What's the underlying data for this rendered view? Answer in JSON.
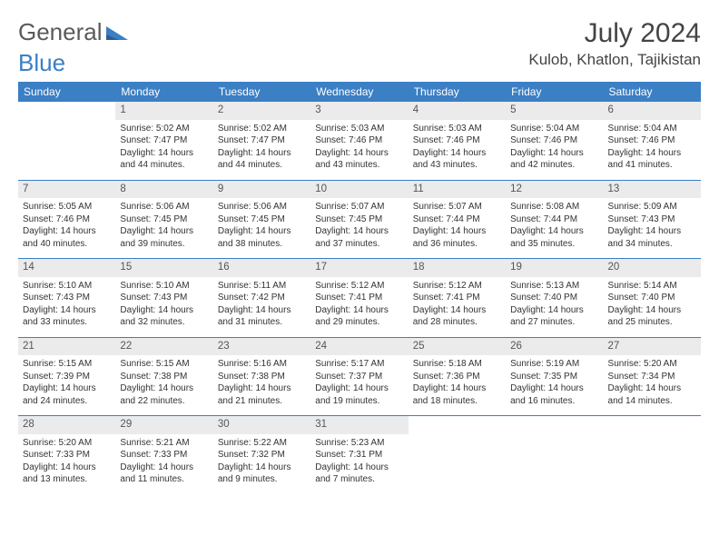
{
  "logo": {
    "text_general": "General",
    "text_blue": "Blue"
  },
  "title": "July 2024",
  "location": "Kulob, Khatlon, Tajikistan",
  "day_headers": [
    "Sunday",
    "Monday",
    "Tuesday",
    "Wednesday",
    "Thursday",
    "Friday",
    "Saturday"
  ],
  "colors": {
    "accent": "#3b7fc4",
    "header_text": "#ffffff",
    "daynum_bg": "#ebebeb",
    "text": "#333333",
    "title_color": "#444444"
  },
  "weeks": [
    [
      {
        "day": "",
        "lines": [
          "",
          "",
          ""
        ]
      },
      {
        "day": "1",
        "lines": [
          "Sunrise: 5:02 AM",
          "Sunset: 7:47 PM",
          "Daylight: 14 hours and 44 minutes."
        ]
      },
      {
        "day": "2",
        "lines": [
          "Sunrise: 5:02 AM",
          "Sunset: 7:47 PM",
          "Daylight: 14 hours and 44 minutes."
        ]
      },
      {
        "day": "3",
        "lines": [
          "Sunrise: 5:03 AM",
          "Sunset: 7:46 PM",
          "Daylight: 14 hours and 43 minutes."
        ]
      },
      {
        "day": "4",
        "lines": [
          "Sunrise: 5:03 AM",
          "Sunset: 7:46 PM",
          "Daylight: 14 hours and 43 minutes."
        ]
      },
      {
        "day": "5",
        "lines": [
          "Sunrise: 5:04 AM",
          "Sunset: 7:46 PM",
          "Daylight: 14 hours and 42 minutes."
        ]
      },
      {
        "day": "6",
        "lines": [
          "Sunrise: 5:04 AM",
          "Sunset: 7:46 PM",
          "Daylight: 14 hours and 41 minutes."
        ]
      }
    ],
    [
      {
        "day": "7",
        "lines": [
          "Sunrise: 5:05 AM",
          "Sunset: 7:46 PM",
          "Daylight: 14 hours and 40 minutes."
        ]
      },
      {
        "day": "8",
        "lines": [
          "Sunrise: 5:06 AM",
          "Sunset: 7:45 PM",
          "Daylight: 14 hours and 39 minutes."
        ]
      },
      {
        "day": "9",
        "lines": [
          "Sunrise: 5:06 AM",
          "Sunset: 7:45 PM",
          "Daylight: 14 hours and 38 minutes."
        ]
      },
      {
        "day": "10",
        "lines": [
          "Sunrise: 5:07 AM",
          "Sunset: 7:45 PM",
          "Daylight: 14 hours and 37 minutes."
        ]
      },
      {
        "day": "11",
        "lines": [
          "Sunrise: 5:07 AM",
          "Sunset: 7:44 PM",
          "Daylight: 14 hours and 36 minutes."
        ]
      },
      {
        "day": "12",
        "lines": [
          "Sunrise: 5:08 AM",
          "Sunset: 7:44 PM",
          "Daylight: 14 hours and 35 minutes."
        ]
      },
      {
        "day": "13",
        "lines": [
          "Sunrise: 5:09 AM",
          "Sunset: 7:43 PM",
          "Daylight: 14 hours and 34 minutes."
        ]
      }
    ],
    [
      {
        "day": "14",
        "lines": [
          "Sunrise: 5:10 AM",
          "Sunset: 7:43 PM",
          "Daylight: 14 hours and 33 minutes."
        ]
      },
      {
        "day": "15",
        "lines": [
          "Sunrise: 5:10 AM",
          "Sunset: 7:43 PM",
          "Daylight: 14 hours and 32 minutes."
        ]
      },
      {
        "day": "16",
        "lines": [
          "Sunrise: 5:11 AM",
          "Sunset: 7:42 PM",
          "Daylight: 14 hours and 31 minutes."
        ]
      },
      {
        "day": "17",
        "lines": [
          "Sunrise: 5:12 AM",
          "Sunset: 7:41 PM",
          "Daylight: 14 hours and 29 minutes."
        ]
      },
      {
        "day": "18",
        "lines": [
          "Sunrise: 5:12 AM",
          "Sunset: 7:41 PM",
          "Daylight: 14 hours and 28 minutes."
        ]
      },
      {
        "day": "19",
        "lines": [
          "Sunrise: 5:13 AM",
          "Sunset: 7:40 PM",
          "Daylight: 14 hours and 27 minutes."
        ]
      },
      {
        "day": "20",
        "lines": [
          "Sunrise: 5:14 AM",
          "Sunset: 7:40 PM",
          "Daylight: 14 hours and 25 minutes."
        ]
      }
    ],
    [
      {
        "day": "21",
        "lines": [
          "Sunrise: 5:15 AM",
          "Sunset: 7:39 PM",
          "Daylight: 14 hours and 24 minutes."
        ]
      },
      {
        "day": "22",
        "lines": [
          "Sunrise: 5:15 AM",
          "Sunset: 7:38 PM",
          "Daylight: 14 hours and 22 minutes."
        ]
      },
      {
        "day": "23",
        "lines": [
          "Sunrise: 5:16 AM",
          "Sunset: 7:38 PM",
          "Daylight: 14 hours and 21 minutes."
        ]
      },
      {
        "day": "24",
        "lines": [
          "Sunrise: 5:17 AM",
          "Sunset: 7:37 PM",
          "Daylight: 14 hours and 19 minutes."
        ]
      },
      {
        "day": "25",
        "lines": [
          "Sunrise: 5:18 AM",
          "Sunset: 7:36 PM",
          "Daylight: 14 hours and 18 minutes."
        ]
      },
      {
        "day": "26",
        "lines": [
          "Sunrise: 5:19 AM",
          "Sunset: 7:35 PM",
          "Daylight: 14 hours and 16 minutes."
        ]
      },
      {
        "day": "27",
        "lines": [
          "Sunrise: 5:20 AM",
          "Sunset: 7:34 PM",
          "Daylight: 14 hours and 14 minutes."
        ]
      }
    ],
    [
      {
        "day": "28",
        "lines": [
          "Sunrise: 5:20 AM",
          "Sunset: 7:33 PM",
          "Daylight: 14 hours and 13 minutes."
        ]
      },
      {
        "day": "29",
        "lines": [
          "Sunrise: 5:21 AM",
          "Sunset: 7:33 PM",
          "Daylight: 14 hours and 11 minutes."
        ]
      },
      {
        "day": "30",
        "lines": [
          "Sunrise: 5:22 AM",
          "Sunset: 7:32 PM",
          "Daylight: 14 hours and 9 minutes."
        ]
      },
      {
        "day": "31",
        "lines": [
          "Sunrise: 5:23 AM",
          "Sunset: 7:31 PM",
          "Daylight: 14 hours and 7 minutes."
        ]
      },
      {
        "day": "",
        "lines": [
          "",
          "",
          ""
        ]
      },
      {
        "day": "",
        "lines": [
          "",
          "",
          ""
        ]
      },
      {
        "day": "",
        "lines": [
          "",
          "",
          ""
        ]
      }
    ]
  ]
}
